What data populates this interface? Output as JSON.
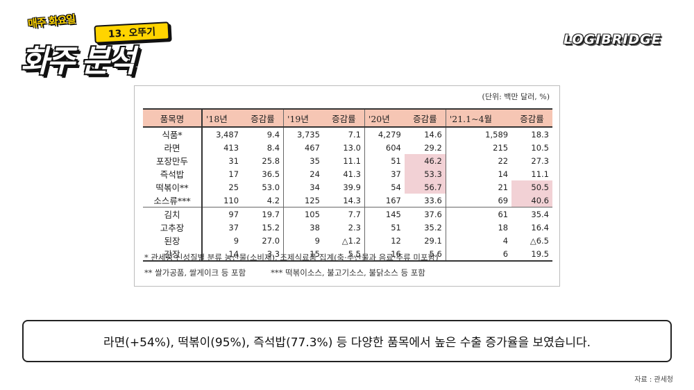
{
  "logo": {
    "top_text": "매주 화요일",
    "badge": "13. 오뚜기",
    "main_text": "화주 분석"
  },
  "brand": "LOGIBRIDGE",
  "table": {
    "unit": "(단위: 백만 달러, %)",
    "headers": [
      "품목명",
      "'18년",
      "증감률",
      "'19년",
      "증감률",
      "'20년",
      "증감률",
      "'21.1~4월",
      "증감률"
    ],
    "rows": [
      {
        "name": "식품*",
        "v": [
          "3,487",
          "9.4",
          "3,735",
          "7.1",
          "4,279",
          "14.6",
          "1,589",
          "18.3"
        ]
      },
      {
        "name": "라면",
        "v": [
          "413",
          "8.4",
          "467",
          "13.0",
          "604",
          "29.2",
          "215",
          "10.5"
        ]
      },
      {
        "name": "포장만두",
        "v": [
          "31",
          "25.8",
          "35",
          "11.1",
          "51",
          "46.2",
          "22",
          "27.3"
        ]
      },
      {
        "name": "즉석밥",
        "v": [
          "17",
          "36.5",
          "24",
          "41.3",
          "37",
          "53.3",
          "14",
          "11.1"
        ]
      },
      {
        "name": "떡볶이**",
        "v": [
          "25",
          "53.0",
          "34",
          "39.9",
          "54",
          "56.7",
          "21",
          "50.5"
        ]
      },
      {
        "name": "소스류***",
        "v": [
          "110",
          "4.2",
          "125",
          "14.3",
          "167",
          "33.6",
          "69",
          "40.6"
        ]
      },
      {
        "name": "김치",
        "v": [
          "97",
          "19.7",
          "105",
          "7.7",
          "145",
          "37.6",
          "61",
          "35.4"
        ]
      },
      {
        "name": "고추장",
        "v": [
          "37",
          "15.2",
          "38",
          "2.3",
          "51",
          "35.2",
          "18",
          "16.4"
        ]
      },
      {
        "name": "된장",
        "v": [
          "9",
          "27.0",
          "9",
          "△1.2",
          "12",
          "29.1",
          "4",
          "△6.5"
        ]
      },
      {
        "name": "간장",
        "v": [
          "14",
          "3.3",
          "15",
          "5.5",
          "16",
          "5.6",
          "6",
          "19.5"
        ]
      }
    ],
    "highlight_color": "#f2d1d5",
    "header_color": "#f6c6b4"
  },
  "notes": {
    "n1": "* 관세청 신성질별 분류 농산물(소비재), 조제식료품 집계(축·수산물과 음료·주류 미포함)",
    "n2": "** 쌀가공품, 쌀게이크 등 포함",
    "n3": "*** 떡볶이소스, 불고기소스, 불닭소스 등 포함"
  },
  "caption": "라면(+54%), 떡볶이(95%), 즉석밥(77.3%) 등 다양한 품목에서 높은 수출 증가율을 보였습니다.",
  "source": "자료 : 관세청"
}
